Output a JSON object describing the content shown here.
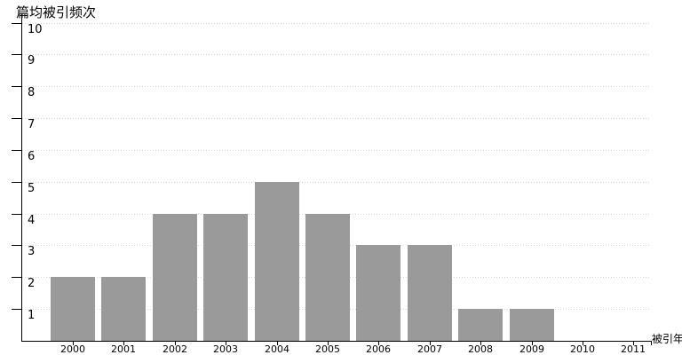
{
  "chart_data": {
    "type": "bar",
    "title": "",
    "ylabel": "篇均被引频次",
    "xlabel": "被引年",
    "categories": [
      "2000",
      "2001",
      "2002",
      "2003",
      "2004",
      "2005",
      "2006",
      "2007",
      "2008",
      "2009",
      "2010",
      "2011"
    ],
    "values": [
      2,
      2,
      4,
      4,
      5,
      4,
      3,
      3,
      1,
      1,
      0,
      0
    ],
    "ylim": [
      0,
      10
    ],
    "yticks": [
      1,
      2,
      3,
      4,
      5,
      6,
      7,
      8,
      9,
      10
    ],
    "grid": true,
    "legend": "none",
    "colors": {
      "bar": "#9a9a9a",
      "axis": "#000000",
      "grid": "#d9d9d9",
      "text": "#000000",
      "background": "#ffffff"
    }
  }
}
